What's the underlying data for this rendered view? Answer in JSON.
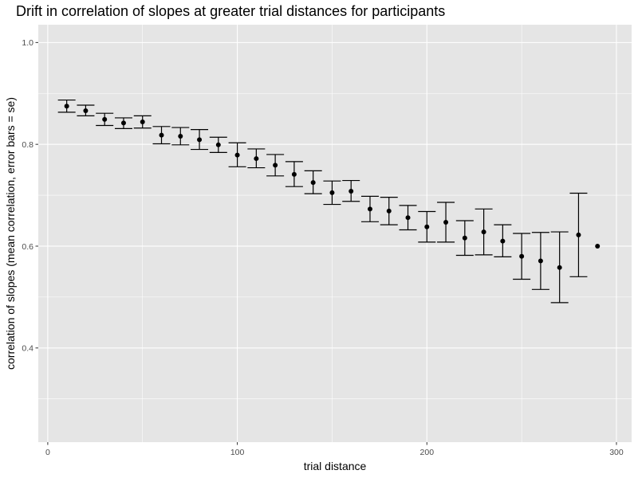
{
  "chart_data": {
    "type": "scatter",
    "title": "Drift in correlation of slopes at greater trial distances for participants",
    "xlabel": "trial distance",
    "ylabel": "correlation of slopes (mean correlation, error bars = se)",
    "xlim": [
      -5,
      308
    ],
    "ylim": [
      0.215,
      1.035
    ],
    "x_ticks": [
      0,
      100,
      200,
      300
    ],
    "y_ticks": [
      0.4,
      0.6,
      0.8,
      1.0
    ],
    "x_tick_labels": [
      "0",
      "100",
      "200",
      "300"
    ],
    "y_tick_labels": [
      "0.4",
      "0.6",
      "0.8",
      "1.0"
    ],
    "grid": true,
    "background": "#e5e5e5",
    "grid_major_color": "#ffffff",
    "point_color": "#000000",
    "series": [
      {
        "x": [
          10,
          20,
          30,
          40,
          50,
          60,
          70,
          80,
          90,
          100,
          110,
          120,
          130,
          140,
          150,
          160,
          170,
          180,
          190,
          200,
          210,
          220,
          230,
          240,
          250,
          260,
          270,
          280,
          290
        ],
        "y": [
          0.875,
          0.866,
          0.849,
          0.842,
          0.844,
          0.818,
          0.816,
          0.809,
          0.799,
          0.779,
          0.772,
          0.759,
          0.741,
          0.725,
          0.705,
          0.708,
          0.673,
          0.669,
          0.656,
          0.638,
          0.647,
          0.616,
          0.628,
          0.61,
          0.58,
          0.571,
          0.558,
          0.622,
          0.6
        ],
        "ymin": [
          0.863,
          0.856,
          0.837,
          0.831,
          0.832,
          0.801,
          0.799,
          0.79,
          0.784,
          0.756,
          0.754,
          0.738,
          0.717,
          0.703,
          0.682,
          0.688,
          0.648,
          0.642,
          0.632,
          0.608,
          0.608,
          0.582,
          0.583,
          0.579,
          0.535,
          0.515,
          0.489,
          0.54,
          null
        ],
        "ymax": [
          0.887,
          0.877,
          0.861,
          0.852,
          0.856,
          0.835,
          0.833,
          0.829,
          0.814,
          0.803,
          0.791,
          0.78,
          0.766,
          0.748,
          0.728,
          0.729,
          0.698,
          0.696,
          0.68,
          0.668,
          0.686,
          0.65,
          0.673,
          0.642,
          0.625,
          0.627,
          0.628,
          0.704,
          null
        ]
      }
    ]
  }
}
